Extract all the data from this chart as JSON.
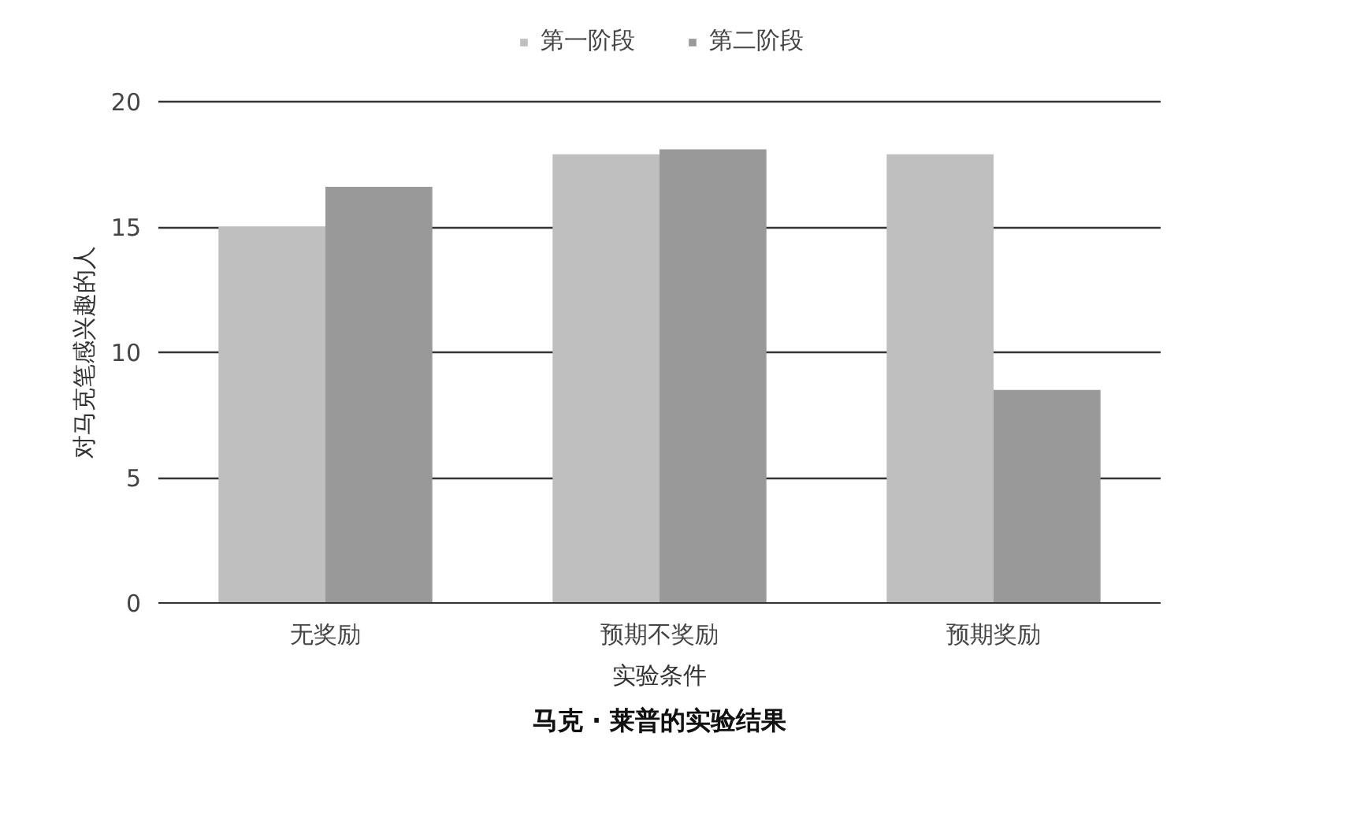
{
  "chart_data": {
    "type": "bar",
    "title": "马克 · 莱普的实验结果",
    "xlabel": "实验条件",
    "ylabel": "对马克笔感兴趣的人",
    "categories": [
      "无奖励",
      "预期不奖励",
      "预期奖励"
    ],
    "series": [
      {
        "name": "第一阶段",
        "color": "#bfbfbf",
        "values": [
          15,
          17.9,
          17.9
        ]
      },
      {
        "name": "第二阶段",
        "color": "#999999",
        "values": [
          16.6,
          18.1,
          8.5
        ]
      }
    ],
    "ylim": [
      0,
      20
    ],
    "yticks": [
      0,
      5,
      10,
      15,
      20
    ],
    "grid": "y",
    "legend": "top"
  }
}
